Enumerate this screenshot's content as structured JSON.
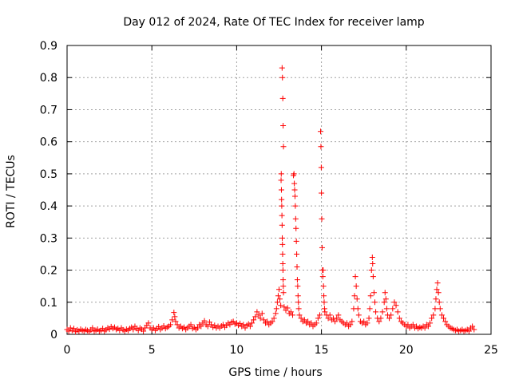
{
  "chart_data": {
    "type": "scatter",
    "title": "Day 012 of 2024, Rate Of TEC Index for receiver lamp",
    "xlabel": "GPS time / hours",
    "ylabel": "ROTI / TECUs",
    "xlim": [
      0,
      25
    ],
    "ylim": [
      0,
      0.9
    ],
    "xticks": [
      0,
      5,
      10,
      15,
      20,
      25
    ],
    "xtick_labels": [
      "0",
      "5",
      "10",
      "15",
      "20",
      "25"
    ],
    "yticks": [
      0,
      0.1,
      0.2,
      0.3,
      0.4,
      0.5,
      0.6,
      0.7,
      0.8,
      0.9
    ],
    "ytick_labels": [
      "0",
      "0.1",
      "0.2",
      "0.3",
      "0.4",
      "0.5",
      "0.6",
      "0.7",
      "0.8",
      "0.9"
    ],
    "grid": true,
    "marker": "+",
    "color": "#ff0000",
    "series": [
      {
        "name": "ROTI",
        "points": [
          [
            0.0,
            0.015
          ],
          [
            0.1,
            0.01
          ],
          [
            0.2,
            0.02
          ],
          [
            0.3,
            0.012
          ],
          [
            0.4,
            0.018
          ],
          [
            0.5,
            0.008
          ],
          [
            0.6,
            0.014
          ],
          [
            0.7,
            0.01
          ],
          [
            0.8,
            0.016
          ],
          [
            0.9,
            0.012
          ],
          [
            1.0,
            0.01
          ],
          [
            1.1,
            0.015
          ],
          [
            1.2,
            0.012
          ],
          [
            1.3,
            0.008
          ],
          [
            1.4,
            0.014
          ],
          [
            1.5,
            0.02
          ],
          [
            1.6,
            0.01
          ],
          [
            1.7,
            0.012
          ],
          [
            1.8,
            0.016
          ],
          [
            1.9,
            0.01
          ],
          [
            2.0,
            0.012
          ],
          [
            2.1,
            0.018
          ],
          [
            2.2,
            0.01
          ],
          [
            2.3,
            0.014
          ],
          [
            2.4,
            0.02
          ],
          [
            2.5,
            0.016
          ],
          [
            2.6,
            0.024
          ],
          [
            2.7,
            0.018
          ],
          [
            2.8,
            0.022
          ],
          [
            2.9,
            0.015
          ],
          [
            3.0,
            0.018
          ],
          [
            3.1,
            0.012
          ],
          [
            3.2,
            0.02
          ],
          [
            3.3,
            0.014
          ],
          [
            3.4,
            0.01
          ],
          [
            3.5,
            0.016
          ],
          [
            3.6,
            0.012
          ],
          [
            3.7,
            0.018
          ],
          [
            3.8,
            0.022
          ],
          [
            3.9,
            0.015
          ],
          [
            4.0,
            0.025
          ],
          [
            4.1,
            0.018
          ],
          [
            4.2,
            0.012
          ],
          [
            4.3,
            0.02
          ],
          [
            4.4,
            0.016
          ],
          [
            4.5,
            0.01
          ],
          [
            4.6,
            0.02
          ],
          [
            4.7,
            0.028
          ],
          [
            4.8,
            0.035
          ],
          [
            4.9,
            0.02
          ],
          [
            5.0,
            0.015
          ],
          [
            5.1,
            0.02
          ],
          [
            5.2,
            0.012
          ],
          [
            5.3,
            0.018
          ],
          [
            5.4,
            0.024
          ],
          [
            5.5,
            0.015
          ],
          [
            5.6,
            0.02
          ],
          [
            5.7,
            0.026
          ],
          [
            5.8,
            0.018
          ],
          [
            5.9,
            0.022
          ],
          [
            6.0,
            0.025
          ],
          [
            6.1,
            0.03
          ],
          [
            6.2,
            0.045
          ],
          [
            6.3,
            0.068
          ],
          [
            6.35,
            0.055
          ],
          [
            6.4,
            0.04
          ],
          [
            6.5,
            0.03
          ],
          [
            6.6,
            0.02
          ],
          [
            6.7,
            0.025
          ],
          [
            6.8,
            0.018
          ],
          [
            6.9,
            0.022
          ],
          [
            7.0,
            0.015
          ],
          [
            7.1,
            0.02
          ],
          [
            7.2,
            0.025
          ],
          [
            7.3,
            0.03
          ],
          [
            7.4,
            0.018
          ],
          [
            7.5,
            0.022
          ],
          [
            7.6,
            0.015
          ],
          [
            7.7,
            0.02
          ],
          [
            7.8,
            0.03
          ],
          [
            7.9,
            0.025
          ],
          [
            8.0,
            0.035
          ],
          [
            8.1,
            0.042
          ],
          [
            8.2,
            0.03
          ],
          [
            8.3,
            0.025
          ],
          [
            8.4,
            0.038
          ],
          [
            8.5,
            0.03
          ],
          [
            8.6,
            0.022
          ],
          [
            8.7,
            0.028
          ],
          [
            8.8,
            0.02
          ],
          [
            8.9,
            0.025
          ],
          [
            9.0,
            0.02
          ],
          [
            9.1,
            0.026
          ],
          [
            9.2,
            0.03
          ],
          [
            9.3,
            0.022
          ],
          [
            9.4,
            0.028
          ],
          [
            9.5,
            0.035
          ],
          [
            9.6,
            0.03
          ],
          [
            9.7,
            0.038
          ],
          [
            9.8,
            0.04
          ],
          [
            9.9,
            0.032
          ],
          [
            10.0,
            0.035
          ],
          [
            10.1,
            0.028
          ],
          [
            10.2,
            0.034
          ],
          [
            10.3,
            0.025
          ],
          [
            10.4,
            0.03
          ],
          [
            10.5,
            0.02
          ],
          [
            10.6,
            0.028
          ],
          [
            10.7,
            0.032
          ],
          [
            10.8,
            0.025
          ],
          [
            10.9,
            0.035
          ],
          [
            11.0,
            0.045
          ],
          [
            11.1,
            0.055
          ],
          [
            11.2,
            0.07
          ],
          [
            11.3,
            0.06
          ],
          [
            11.4,
            0.05
          ],
          [
            11.5,
            0.065
          ],
          [
            11.6,
            0.045
          ],
          [
            11.7,
            0.035
          ],
          [
            11.8,
            0.04
          ],
          [
            11.9,
            0.03
          ],
          [
            12.0,
            0.035
          ],
          [
            12.1,
            0.04
          ],
          [
            12.2,
            0.05
          ],
          [
            12.3,
            0.065
          ],
          [
            12.35,
            0.08
          ],
          [
            12.4,
            0.1
          ],
          [
            12.45,
            0.12
          ],
          [
            12.5,
            0.14
          ],
          [
            12.55,
            0.11
          ],
          [
            12.6,
            0.09
          ],
          [
            12.62,
            0.48
          ],
          [
            12.63,
            0.5
          ],
          [
            12.64,
            0.45
          ],
          [
            12.65,
            0.42
          ],
          [
            12.66,
            0.4
          ],
          [
            12.67,
            0.37
          ],
          [
            12.68,
            0.34
          ],
          [
            12.69,
            0.3
          ],
          [
            12.7,
            0.28
          ],
          [
            12.71,
            0.25
          ],
          [
            12.72,
            0.22
          ],
          [
            12.73,
            0.2
          ],
          [
            12.74,
            0.17
          ],
          [
            12.75,
            0.15
          ],
          [
            12.76,
            0.13
          ],
          [
            12.68,
            0.83
          ],
          [
            12.7,
            0.8
          ],
          [
            12.72,
            0.735
          ],
          [
            12.74,
            0.65
          ],
          [
            12.76,
            0.585
          ],
          [
            12.8,
            0.085
          ],
          [
            12.9,
            0.075
          ],
          [
            13.0,
            0.082
          ],
          [
            13.1,
            0.065
          ],
          [
            13.2,
            0.07
          ],
          [
            13.3,
            0.06
          ],
          [
            13.35,
            0.495
          ],
          [
            13.38,
            0.5
          ],
          [
            13.4,
            0.47
          ],
          [
            13.42,
            0.45
          ],
          [
            13.44,
            0.43
          ],
          [
            13.46,
            0.4
          ],
          [
            13.48,
            0.36
          ],
          [
            13.5,
            0.33
          ],
          [
            13.52,
            0.29
          ],
          [
            13.54,
            0.25
          ],
          [
            13.56,
            0.21
          ],
          [
            13.58,
            0.17
          ],
          [
            13.6,
            0.15
          ],
          [
            13.62,
            0.12
          ],
          [
            13.64,
            0.1
          ],
          [
            13.66,
            0.08
          ],
          [
            13.7,
            0.06
          ],
          [
            13.8,
            0.05
          ],
          [
            13.9,
            0.04
          ],
          [
            14.0,
            0.045
          ],
          [
            14.1,
            0.035
          ],
          [
            14.2,
            0.04
          ],
          [
            14.3,
            0.03
          ],
          [
            14.4,
            0.035
          ],
          [
            14.5,
            0.025
          ],
          [
            14.6,
            0.03
          ],
          [
            14.7,
            0.035
          ],
          [
            14.8,
            0.05
          ],
          [
            14.9,
            0.06
          ],
          [
            14.95,
            0.632
          ],
          [
            14.97,
            0.585
          ],
          [
            14.99,
            0.52
          ],
          [
            15.0,
            0.44
          ],
          [
            15.02,
            0.36
          ],
          [
            15.04,
            0.27
          ],
          [
            15.06,
            0.2
          ],
          [
            15.08,
            0.18
          ],
          [
            15.1,
            0.2
          ],
          [
            15.12,
            0.15
          ],
          [
            15.14,
            0.12
          ],
          [
            15.16,
            0.1
          ],
          [
            15.18,
            0.08
          ],
          [
            15.2,
            0.07
          ],
          [
            15.3,
            0.06
          ],
          [
            15.4,
            0.05
          ],
          [
            15.5,
            0.06
          ],
          [
            15.6,
            0.045
          ],
          [
            15.7,
            0.05
          ],
          [
            15.8,
            0.04
          ],
          [
            15.9,
            0.05
          ],
          [
            16.0,
            0.06
          ],
          [
            16.1,
            0.045
          ],
          [
            16.2,
            0.04
          ],
          [
            16.3,
            0.035
          ],
          [
            16.4,
            0.03
          ],
          [
            16.5,
            0.035
          ],
          [
            16.6,
            0.025
          ],
          [
            16.7,
            0.03
          ],
          [
            16.8,
            0.04
          ],
          [
            16.9,
            0.08
          ],
          [
            16.95,
            0.12
          ],
          [
            17.0,
            0.18
          ],
          [
            17.05,
            0.15
          ],
          [
            17.1,
            0.11
          ],
          [
            17.15,
            0.08
          ],
          [
            17.2,
            0.06
          ],
          [
            17.3,
            0.04
          ],
          [
            17.4,
            0.035
          ],
          [
            17.5,
            0.04
          ],
          [
            17.6,
            0.03
          ],
          [
            17.7,
            0.035
          ],
          [
            17.8,
            0.05
          ],
          [
            17.85,
            0.08
          ],
          [
            17.9,
            0.12
          ],
          [
            17.95,
            0.2
          ],
          [
            18.0,
            0.24
          ],
          [
            18.02,
            0.22
          ],
          [
            18.05,
            0.18
          ],
          [
            18.1,
            0.13
          ],
          [
            18.15,
            0.1
          ],
          [
            18.2,
            0.07
          ],
          [
            18.3,
            0.05
          ],
          [
            18.4,
            0.04
          ],
          [
            18.5,
            0.05
          ],
          [
            18.6,
            0.07
          ],
          [
            18.7,
            0.1
          ],
          [
            18.75,
            0.13
          ],
          [
            18.8,
            0.11
          ],
          [
            18.85,
            0.08
          ],
          [
            18.9,
            0.06
          ],
          [
            19.0,
            0.05
          ],
          [
            19.1,
            0.06
          ],
          [
            19.2,
            0.08
          ],
          [
            19.3,
            0.1
          ],
          [
            19.4,
            0.09
          ],
          [
            19.5,
            0.07
          ],
          [
            19.6,
            0.05
          ],
          [
            19.7,
            0.04
          ],
          [
            19.8,
            0.035
          ],
          [
            19.9,
            0.03
          ],
          [
            20.0,
            0.025
          ],
          [
            20.1,
            0.03
          ],
          [
            20.2,
            0.02
          ],
          [
            20.3,
            0.025
          ],
          [
            20.4,
            0.03
          ],
          [
            20.5,
            0.02
          ],
          [
            20.6,
            0.025
          ],
          [
            20.7,
            0.018
          ],
          [
            20.8,
            0.022
          ],
          [
            20.9,
            0.02
          ],
          [
            21.0,
            0.025
          ],
          [
            21.1,
            0.02
          ],
          [
            21.2,
            0.03
          ],
          [
            21.3,
            0.025
          ],
          [
            21.4,
            0.035
          ],
          [
            21.5,
            0.05
          ],
          [
            21.6,
            0.06
          ],
          [
            21.7,
            0.08
          ],
          [
            21.75,
            0.11
          ],
          [
            21.8,
            0.14
          ],
          [
            21.85,
            0.16
          ],
          [
            21.9,
            0.13
          ],
          [
            21.95,
            0.1
          ],
          [
            22.0,
            0.08
          ],
          [
            22.1,
            0.06
          ],
          [
            22.2,
            0.05
          ],
          [
            22.3,
            0.04
          ],
          [
            22.4,
            0.03
          ],
          [
            22.5,
            0.025
          ],
          [
            22.6,
            0.02
          ],
          [
            22.7,
            0.018
          ],
          [
            22.8,
            0.015
          ],
          [
            22.9,
            0.012
          ],
          [
            23.0,
            0.015
          ],
          [
            23.1,
            0.01
          ],
          [
            23.2,
            0.012
          ],
          [
            23.3,
            0.015
          ],
          [
            23.4,
            0.01
          ],
          [
            23.5,
            0.012
          ],
          [
            23.6,
            0.015
          ],
          [
            23.7,
            0.01
          ],
          [
            23.8,
            0.02
          ],
          [
            23.9,
            0.025
          ],
          [
            24.0,
            0.015
          ]
        ]
      }
    ]
  }
}
